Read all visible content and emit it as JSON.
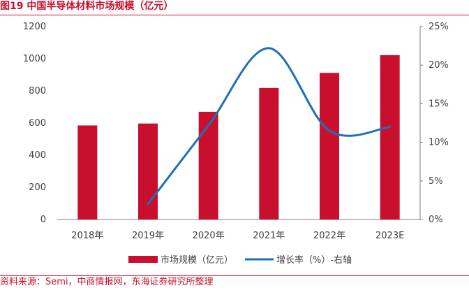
{
  "figure": {
    "title": "图19  中国半导体材料市场规模（亿元）",
    "source": "资料来源：Semi，中商情报网，东海证券研究所整理"
  },
  "colors": {
    "accent": "#c8102e",
    "bar": "#c8102e",
    "line": "#1f6fb5",
    "axis": "#7f7f7f",
    "text": "#404040"
  },
  "chart_data": {
    "type": "bar",
    "title": "中国半导体材料市场规模（亿元）",
    "categories": [
      "2018年",
      "2019年",
      "2020年",
      "2021年",
      "2022年",
      "2023E"
    ],
    "series": [
      {
        "name": "市场规模（亿元）",
        "type": "bar",
        "axis": "left",
        "values": [
          585,
          597,
          670,
          818,
          912,
          1022
        ]
      },
      {
        "name": "增长率（%）-右轴",
        "type": "line",
        "axis": "right",
        "smooth": true,
        "values": [
          null,
          2.0,
          12.2,
          22.2,
          11.5,
          12.0
        ]
      }
    ],
    "ylim": [
      0,
      1200
    ],
    "yticks": [
      "0",
      "200",
      "400",
      "600",
      "800",
      "1000",
      "1200"
    ],
    "y2lim": [
      0,
      25
    ],
    "y2ticks": [
      "0%",
      "5%",
      "10%",
      "15%",
      "20%",
      "25%"
    ],
    "legend": {
      "position": "bottom-center",
      "entries": [
        "市场规模（亿元）",
        "增长率（%）-右轴"
      ]
    },
    "grid": false
  }
}
